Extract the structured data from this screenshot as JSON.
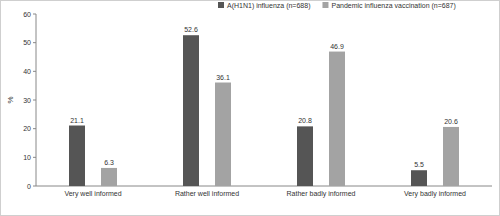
{
  "chart_data": {
    "type": "bar",
    "y_label": "%",
    "categories": [
      "Very well informed",
      "Rather well informed",
      "Rather badly informed",
      "Very badly informed"
    ],
    "series": [
      {
        "name": "A(H1N1) influenza (n=688)",
        "color": "#555555",
        "values": [
          21.1,
          52.6,
          20.8,
          5.5
        ]
      },
      {
        "name": "Pandemic influenza vaccination (n=687)",
        "color": "#a3a3a3",
        "values": [
          6.3,
          36.1,
          46.9,
          20.6
        ]
      }
    ],
    "ylim": [
      0,
      60
    ],
    "yticks": [
      0,
      10,
      20,
      30,
      40,
      50,
      60
    ],
    "grid": false,
    "legend": "top",
    "data_labels": true
  }
}
